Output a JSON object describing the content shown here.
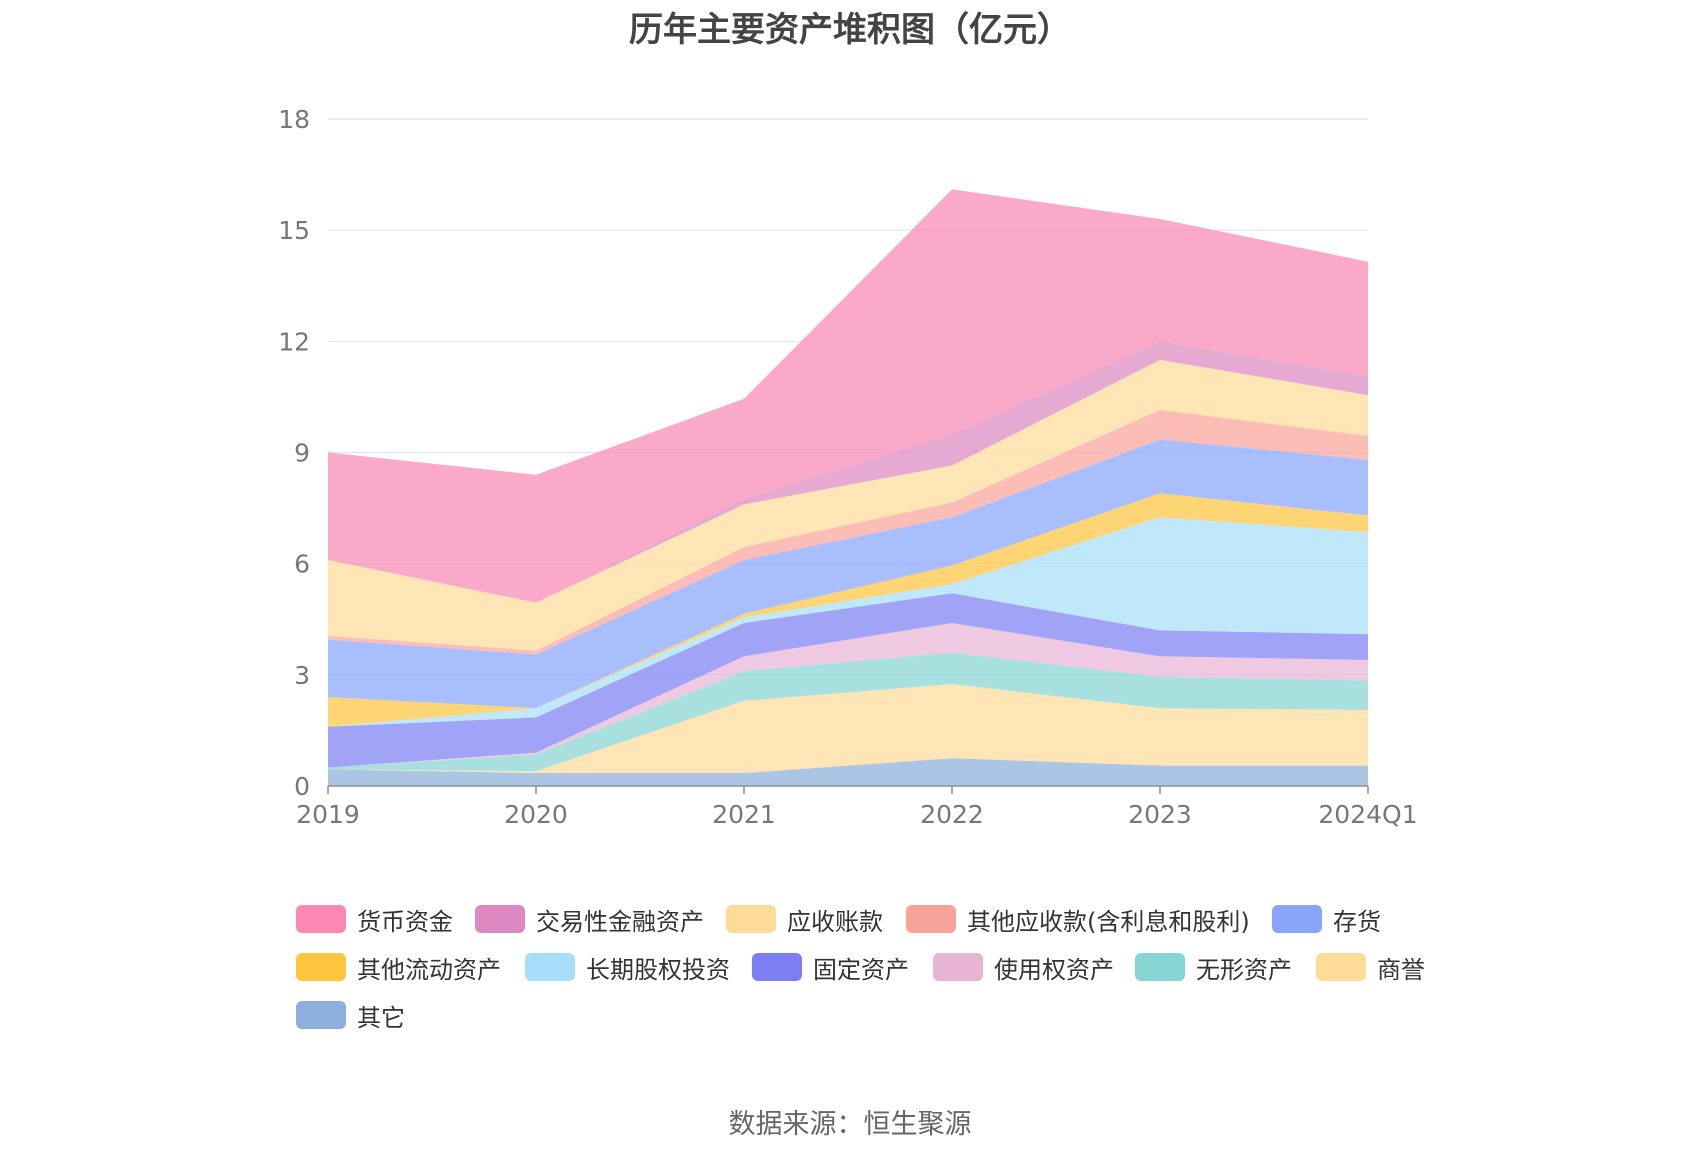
{
  "chart_data": {
    "type": "area",
    "stacked": true,
    "title": "历年主要资产堆积图（亿元）",
    "x": [
      "2019",
      "2020",
      "2021",
      "2022",
      "2023",
      "2024Q1"
    ],
    "yticks": [
      "0",
      "3",
      "6",
      "9",
      "12",
      "15",
      "18"
    ],
    "ylim": [
      0,
      18
    ],
    "grid": true,
    "legend_position": "bottom",
    "series": [
      {
        "name": "其它",
        "color": "#8eaedb",
        "values": [
          0.45,
          0.35,
          0.35,
          0.75,
          0.55,
          0.55
        ]
      },
      {
        "name": "商誉",
        "color": "#fddb99",
        "values": [
          0.0,
          0.05,
          1.95,
          2.0,
          1.55,
          1.5
        ]
      },
      {
        "name": "无形资产",
        "color": "#86d4d4",
        "values": [
          0.05,
          0.45,
          0.8,
          0.85,
          0.85,
          0.8
        ]
      },
      {
        "name": "使用权资产",
        "color": "#e8b4d6",
        "values": [
          0.0,
          0.05,
          0.4,
          0.8,
          0.55,
          0.55
        ]
      },
      {
        "name": "固定资产",
        "color": "#7b7ff2",
        "values": [
          1.1,
          0.95,
          0.9,
          0.8,
          0.7,
          0.7
        ]
      },
      {
        "name": "长期股权投资",
        "color": "#a7dffa",
        "values": [
          0.0,
          0.25,
          0.15,
          0.25,
          3.05,
          2.75
        ]
      },
      {
        "name": "其他流动资产",
        "color": "#fdc540",
        "values": [
          0.8,
          0.0,
          0.1,
          0.5,
          0.65,
          0.45
        ]
      },
      {
        "name": "存货",
        "color": "#88a5fb",
        "values": [
          1.55,
          1.45,
          1.45,
          1.3,
          1.45,
          1.5
        ]
      },
      {
        "name": "其他应收款(含利息和股利)",
        "color": "#f9a49a",
        "values": [
          0.1,
          0.1,
          0.35,
          0.4,
          0.8,
          0.65
        ]
      },
      {
        "name": "应收账款",
        "color": "#fddb99",
        "values": [
          2.05,
          1.3,
          1.15,
          1.0,
          1.35,
          1.1
        ]
      },
      {
        "name": "交易性金融资产",
        "color": "#dd88c0",
        "values": [
          0.0,
          0.0,
          0.15,
          0.85,
          0.5,
          0.5
        ]
      },
      {
        "name": "货币资金",
        "color": "#fa88b3",
        "values": [
          2.9,
          3.45,
          2.7,
          6.6,
          3.3,
          3.1
        ]
      }
    ],
    "legend_order": [
      "货币资金",
      "交易性金融资产",
      "应收账款",
      "其他应收款(含利息和股利)",
      "存货",
      "其他流动资产",
      "长期股权投资",
      "固定资产",
      "使用权资产",
      "无形资产",
      "商誉",
      "其它"
    ]
  },
  "source": "数据来源：恒生聚源"
}
